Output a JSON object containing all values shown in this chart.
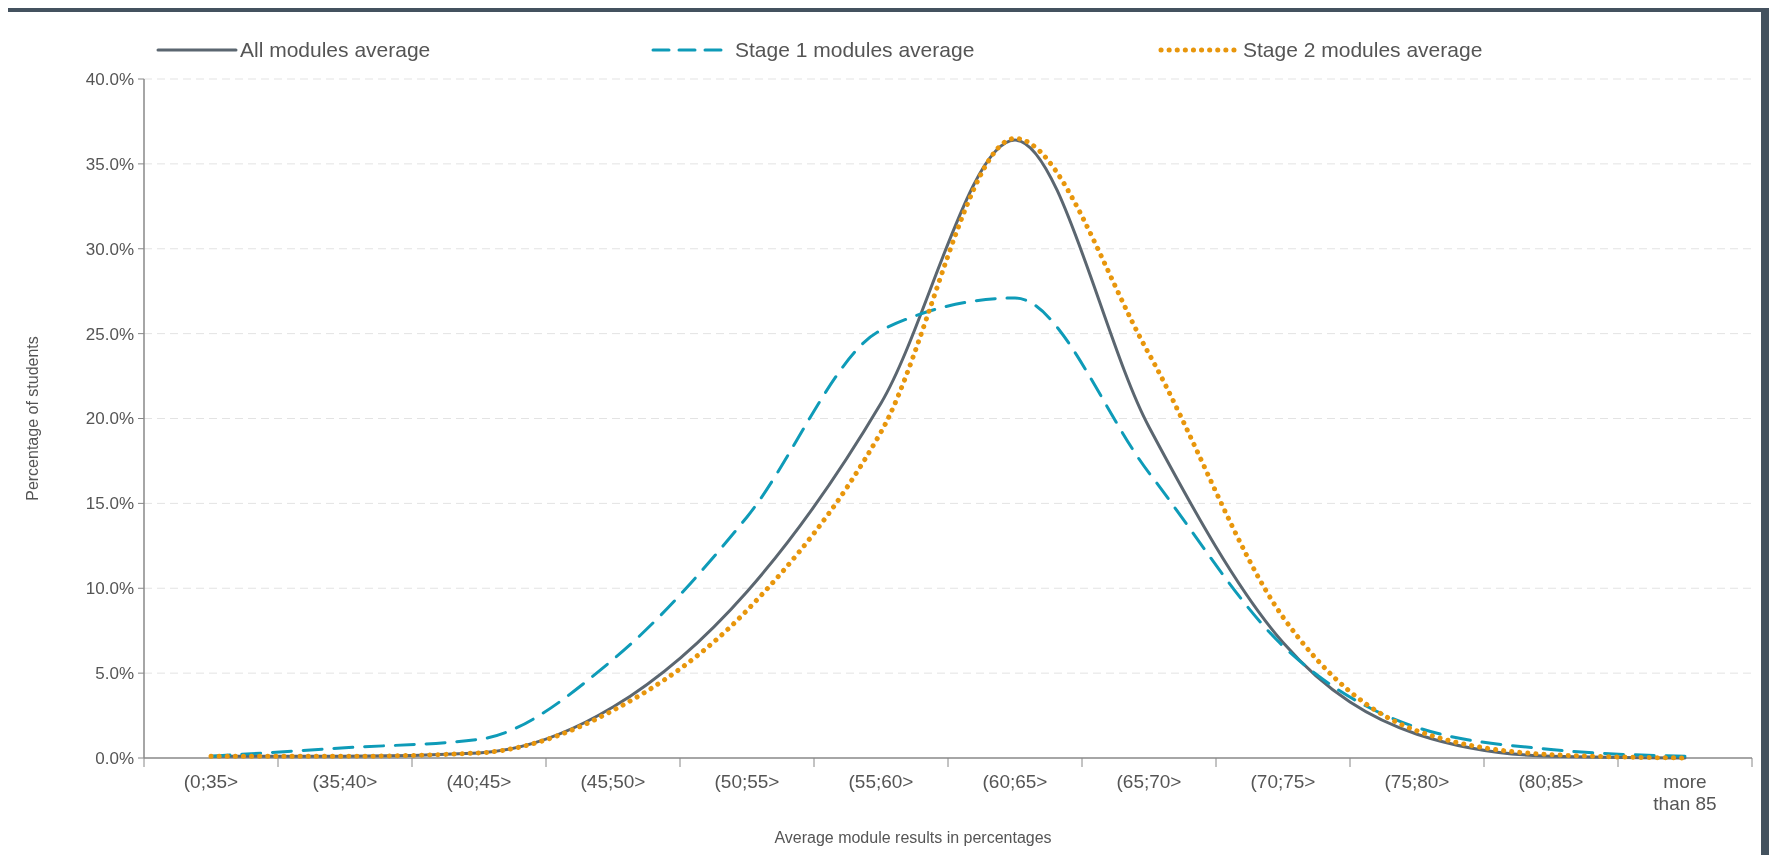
{
  "chart_data": {
    "type": "line",
    "xlabel": "Average module results in percentages",
    "ylabel": "Percentage of students",
    "categories": [
      "(0;35>",
      "(35;40>",
      "(40;45>",
      "(45;50>",
      "(50;55>",
      "(55;60>",
      "(60;65>",
      "(65;70>",
      "(70;75>",
      "(75;80>",
      "(80;85>",
      "more than 85"
    ],
    "series": [
      {
        "name": "All modules average",
        "color": "#5b6670",
        "line_style": "solid",
        "values": [
          0.1,
          0.1,
          0.3,
          3.0,
          9.8,
          20.9,
          36.4,
          19.5,
          6.8,
          1.4,
          0.1,
          0.0
        ]
      },
      {
        "name": "Stage 1 modules average",
        "color": "#0e9bb8",
        "line_style": "dashed",
        "values": [
          0.1,
          0.6,
          1.1,
          5.8,
          14.2,
          25.2,
          27.1,
          16.8,
          6.6,
          1.8,
          0.5,
          0.1
        ]
      },
      {
        "name": "Stage 2 modules average",
        "color": "#e8960c",
        "line_style": "dotted",
        "values": [
          0.1,
          0.1,
          0.3,
          2.8,
          8.7,
          19.2,
          36.5,
          23.8,
          8.3,
          1.6,
          0.2,
          0.0
        ]
      }
    ],
    "ylim": [
      0,
      40
    ],
    "yticks": [
      {
        "value": 0,
        "label": "0.0%"
      },
      {
        "value": 5,
        "label": "5.0%"
      },
      {
        "value": 10,
        "label": "10.0%"
      },
      {
        "value": 15,
        "label": "15.0%"
      },
      {
        "value": 20,
        "label": "20.0%"
      },
      {
        "value": 25,
        "label": "25.0%"
      },
      {
        "value": 30,
        "label": "30.0%"
      },
      {
        "value": 35,
        "label": "35.0%"
      },
      {
        "value": 40,
        "label": "40.0%"
      }
    ],
    "grid": "y",
    "legend": "top"
  }
}
